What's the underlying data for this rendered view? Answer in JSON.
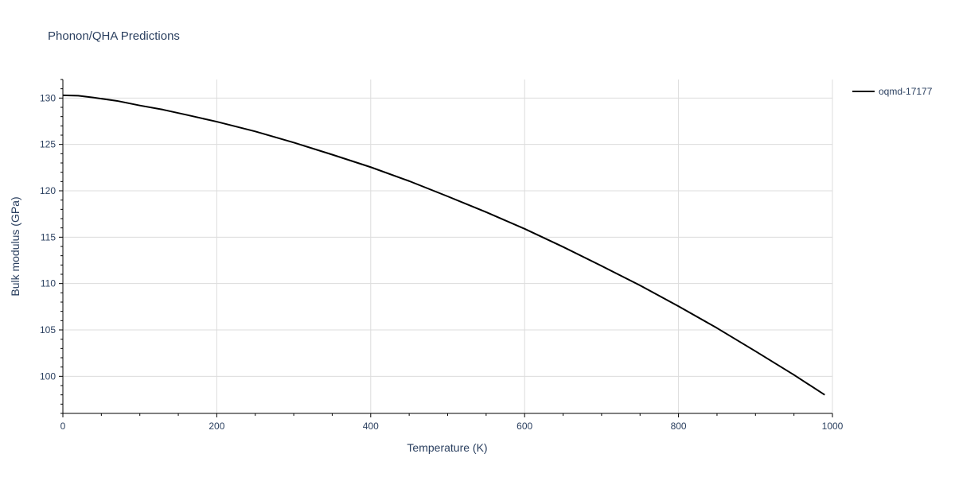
{
  "chart_data": {
    "type": "line",
    "title": "Phonon/QHA Predictions",
    "xlabel": "Temperature (K)",
    "ylabel": "Bulk modulus (GPa)",
    "xlim": [
      0,
      1000
    ],
    "ylim": [
      96,
      132
    ],
    "x_ticks": [
      0,
      200,
      400,
      600,
      800,
      1000
    ],
    "y_ticks": [
      100,
      105,
      110,
      115,
      120,
      125,
      130
    ],
    "grid": true,
    "legend_position": "top-right",
    "series": [
      {
        "name": "oqmd-17177",
        "color": "#000000",
        "x": [
          0,
          20,
          40,
          70,
          100,
          130,
          160,
          200,
          250,
          300,
          350,
          400,
          450,
          500,
          550,
          600,
          650,
          700,
          750,
          800,
          850,
          900,
          950,
          990
        ],
        "y": [
          130.3,
          130.25,
          130.05,
          129.7,
          129.2,
          128.75,
          128.2,
          127.45,
          126.4,
          125.2,
          123.9,
          122.55,
          121.05,
          119.4,
          117.7,
          115.9,
          113.95,
          111.9,
          109.8,
          107.55,
          105.2,
          102.7,
          100.15,
          98.0
        ]
      }
    ]
  }
}
